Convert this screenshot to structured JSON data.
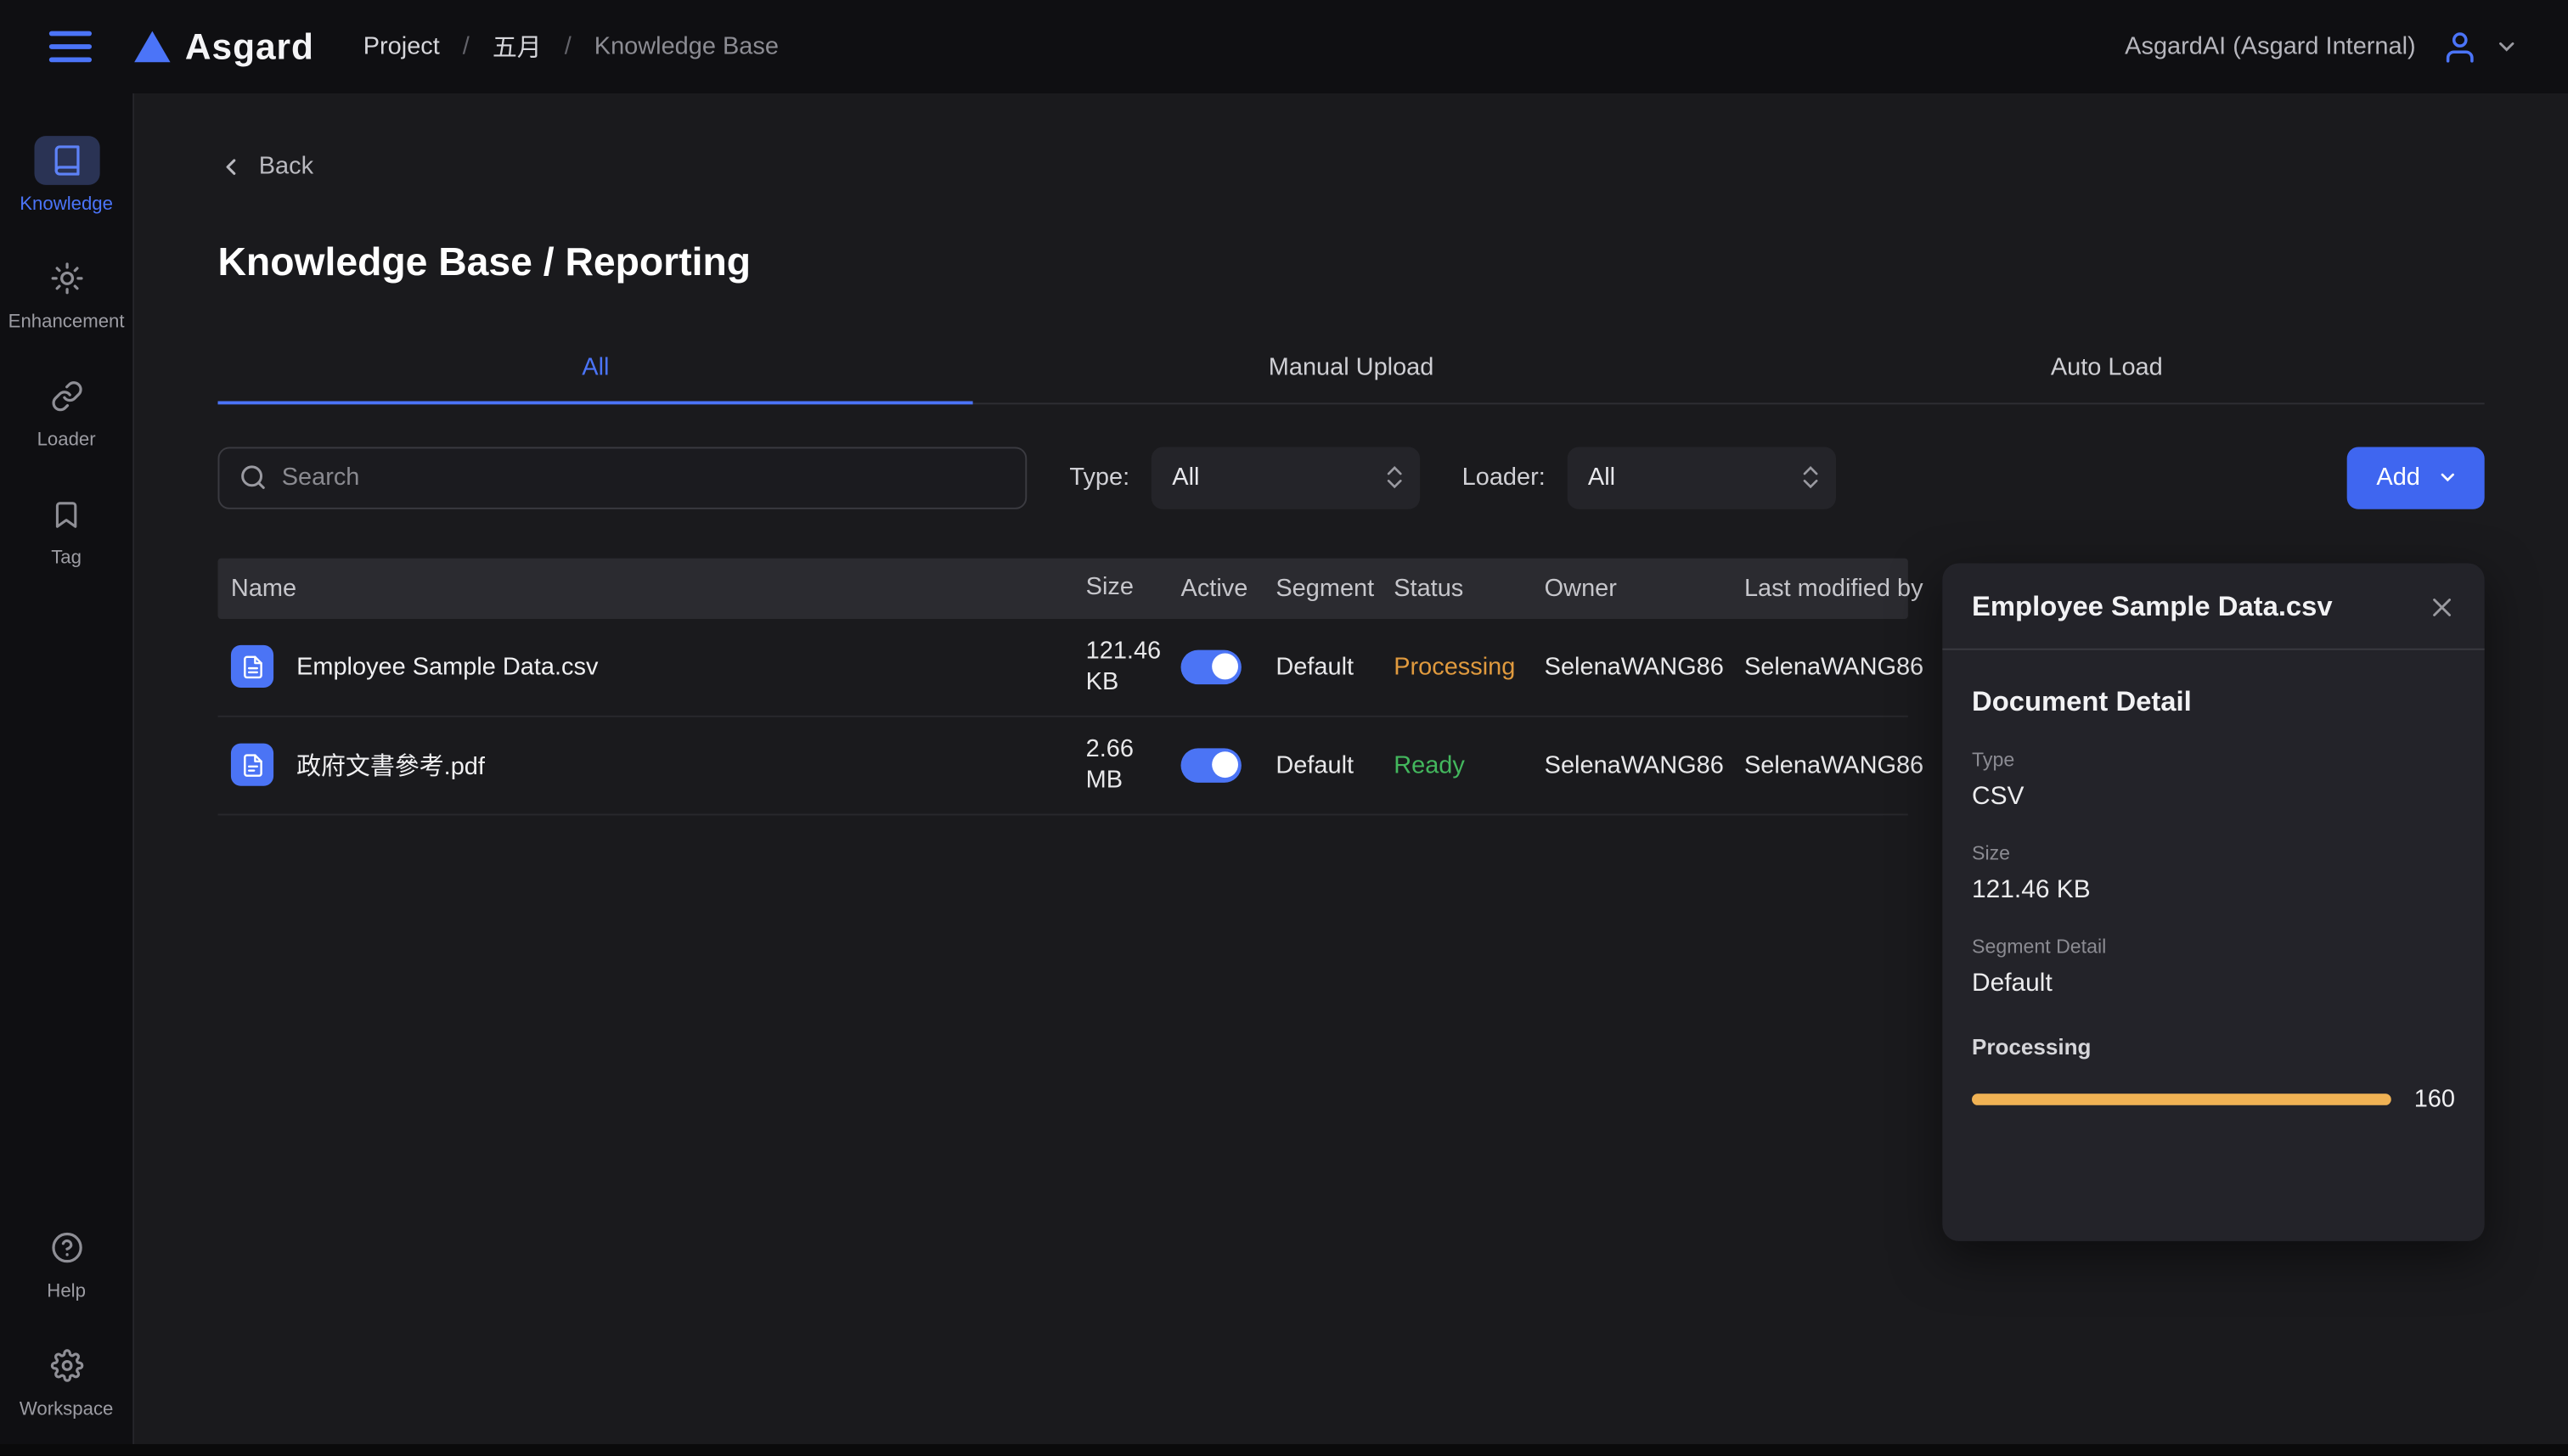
{
  "topbar": {
    "logo_text": "Asgard",
    "breadcrumb": [
      "Project",
      "五月",
      "Knowledge Base"
    ],
    "account_name": "AsgardAI (Asgard Internal)"
  },
  "sidebar": {
    "items": [
      {
        "label": "Knowledge",
        "icon": "book-icon",
        "active": true
      },
      {
        "label": "Enhancement",
        "icon": "sun-icon",
        "active": false
      },
      {
        "label": "Loader",
        "icon": "link-icon",
        "active": false
      },
      {
        "label": "Tag",
        "icon": "bookmark-icon",
        "active": false
      }
    ],
    "bottom_items": [
      {
        "label": "Help",
        "icon": "help-circle-icon"
      },
      {
        "label": "Workspace",
        "icon": "gear-icon"
      }
    ]
  },
  "page": {
    "back_label": "Back",
    "title": "Knowledge Base / Reporting",
    "tabs": [
      {
        "label": "All",
        "active": true
      },
      {
        "label": "Manual Upload",
        "active": false
      },
      {
        "label": "Auto Load",
        "active": false
      }
    ]
  },
  "filters": {
    "search_placeholder": "Search",
    "type_label": "Type:",
    "type_value": "All",
    "loader_label": "Loader:",
    "loader_value": "All",
    "add_label": "Add"
  },
  "table": {
    "columns": [
      "Name",
      "Size",
      "Active",
      "Segment",
      "Status",
      "Owner",
      "Last modified by"
    ],
    "rows": [
      {
        "name": "Employee Sample Data.csv",
        "file_type": "csv",
        "size": "121.46 KB",
        "active": true,
        "segment": "Default",
        "status": "Processing",
        "status_color": "#e09a3e",
        "owner": "SelenaWANG86",
        "last_modified_by": "SelenaWANG86"
      },
      {
        "name": "政府文書參考.pdf",
        "file_type": "pdf",
        "size": "2.66 MB",
        "active": true,
        "segment": "Default",
        "status": "Ready",
        "status_color": "#43b75d",
        "owner": "SelenaWANG86",
        "last_modified_by": "SelenaWANG86"
      }
    ]
  },
  "detail_panel": {
    "title": "Employee Sample Data.csv",
    "section_title": "Document Detail",
    "fields": [
      {
        "label": "Type",
        "value": "CSV"
      },
      {
        "label": "Size",
        "value": "121.46 KB"
      },
      {
        "label": "Segment Detail",
        "value": "Default"
      }
    ],
    "processing_label": "Processing",
    "processing_value": "160",
    "progress_percent": 100,
    "progress_color": "#f0b254"
  },
  "colors": {
    "accent": "#4b74f8",
    "processing": "#e09a3e",
    "ready": "#43b75d",
    "progress": "#f0b254"
  }
}
